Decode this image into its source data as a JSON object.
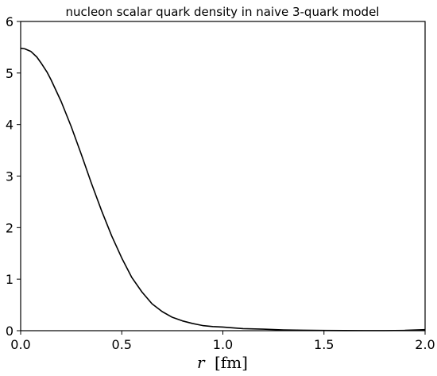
{
  "chart_data": {
    "type": "line",
    "title": "nucleon scalar quark density in naive 3-quark model",
    "xlabel": "r [fm]",
    "xlabel_parts": {
      "var": "r",
      "unit": "[fm]"
    },
    "ylabel": "",
    "xlim": [
      0,
      2
    ],
    "ylim": [
      0,
      6
    ],
    "xticks": [
      0.0,
      0.5,
      1.0,
      1.5,
      2.0
    ],
    "xtick_labels": [
      "0.0",
      "0.5",
      "1.0",
      "1.5",
      "2.0"
    ],
    "yticks": [
      0,
      1,
      2,
      3,
      4,
      5,
      6
    ],
    "ytick_labels": [
      "0",
      "1",
      "2",
      "3",
      "4",
      "5",
      "6"
    ],
    "grid": false,
    "line_color": "#000000",
    "series": [
      {
        "x": [
          0.0,
          0.02,
          0.05,
          0.08,
          0.1,
          0.13,
          0.15,
          0.2,
          0.25,
          0.3,
          0.35,
          0.4,
          0.45,
          0.5,
          0.55,
          0.6,
          0.65,
          0.7,
          0.75,
          0.8,
          0.85,
          0.9,
          0.95,
          1.0,
          1.1,
          1.2,
          1.3,
          1.4,
          1.5,
          1.6,
          1.7,
          1.8,
          1.9,
          2.0
        ],
        "y": [
          5.48,
          5.47,
          5.42,
          5.31,
          5.2,
          5.02,
          4.87,
          4.45,
          3.96,
          3.42,
          2.86,
          2.33,
          1.84,
          1.41,
          1.03,
          0.75,
          0.52,
          0.37,
          0.26,
          0.19,
          0.14,
          0.1,
          0.08,
          0.07,
          0.04,
          0.03,
          0.015,
          0.008,
          0.005,
          0.003,
          0.002,
          0.002,
          0.006,
          0.02
        ]
      }
    ]
  }
}
